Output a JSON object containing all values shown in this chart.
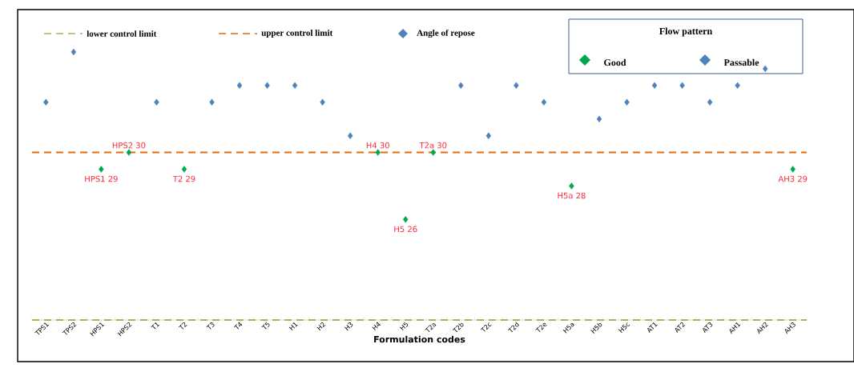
{
  "chart_data": {
    "type": "scatter",
    "categories": [
      "TPS1",
      "TPS2",
      "HPS1",
      "HPS2",
      "T1",
      "T2",
      "T3",
      "T4",
      "T5",
      "H1",
      "H2",
      "H3",
      "H4",
      "H5",
      "T2a",
      "T2b",
      "T2c",
      "T2d",
      "T2e",
      "H5a",
      "H5b",
      "H5c",
      "AT1",
      "AT2",
      "AT3",
      "AH1",
      "AH2",
      "AH3"
    ],
    "series": [
      {
        "name": "Good",
        "color": "#00a651",
        "values": [
          null,
          null,
          29,
          30,
          null,
          29,
          null,
          null,
          null,
          null,
          null,
          null,
          30,
          26,
          30,
          null,
          null,
          null,
          null,
          28,
          null,
          null,
          null,
          null,
          null,
          null,
          null,
          29
        ],
        "value_labels": [
          null,
          null,
          "HPS1 29",
          "HPS2 30",
          null,
          "T2 29",
          null,
          null,
          null,
          null,
          null,
          null,
          "H4 30",
          "H5 26",
          "T2a 30",
          null,
          null,
          null,
          null,
          "H5a 28",
          null,
          null,
          null,
          null,
          null,
          null,
          null,
          "AH3 29"
        ]
      },
      {
        "name": "Passable",
        "color": "#4f81bd",
        "values": [
          33,
          36,
          null,
          null,
          33,
          null,
          33,
          34,
          34,
          34,
          33,
          31,
          null,
          null,
          null,
          34,
          31,
          34,
          33,
          null,
          32,
          33,
          34,
          34,
          33,
          34,
          35,
          null
        ]
      }
    ],
    "ref_lines": [
      {
        "axis": "y",
        "value": 20,
        "label": "lower control limit",
        "color": "#9bbb59",
        "line_style": "dashed"
      },
      {
        "axis": "y",
        "value": 30,
        "label": "upper control limit",
        "color": "#e46c0a",
        "line_style": "dashed"
      }
    ],
    "annotations": [
      "Angle of repose"
    ],
    "xlabel": "Formulation codes",
    "legend_title": "Flow pattern",
    "legend": "top right",
    "marker": "diamond",
    "tick_labels": "x",
    "grid": false
  }
}
